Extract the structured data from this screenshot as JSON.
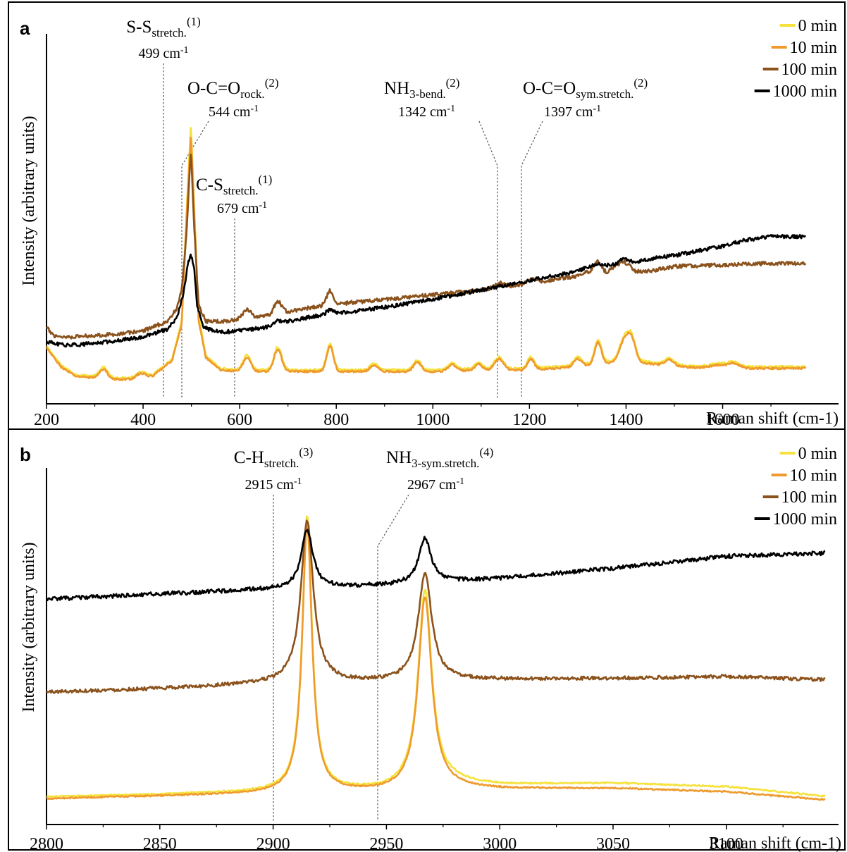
{
  "chart_data": [
    {
      "panel": "a",
      "type": "line",
      "xlabel": "Raman shift (cm-1)",
      "ylabel": "Intensity (arbitrary units)",
      "xlim": [
        200,
        1720
      ],
      "ylim": [
        0,
        1
      ],
      "xticks": [
        "200",
        "400",
        "600",
        "800",
        "1000",
        "1200",
        "1400",
        "1600"
      ],
      "legend_position": "top-right",
      "legend": [
        {
          "name": "0 min",
          "color": "#f5e23c"
        },
        {
          "name": "10 min",
          "color": "#ef9a2e"
        },
        {
          "name": "100 min",
          "color": "#8b521c"
        },
        {
          "name": "1000 min",
          "color": "#000000"
        }
      ],
      "annotations": [
        {
          "main": "S-S",
          "sub": "stretch.",
          "sup": "(1)",
          "wavenumber": "499 cm-1",
          "x": 499
        },
        {
          "main": "O-C=O",
          "sub": "rock.",
          "sup": "(2)",
          "wavenumber": "544 cm-1",
          "x": 544
        },
        {
          "main": "C-S",
          "sub": "stretch.",
          "sup": "(1)",
          "wavenumber": "679 cm-1",
          "x": 679
        },
        {
          "main": "NH",
          "sub": "3-bend.",
          "sup": "(2)",
          "wavenumber": "1342 cm-1",
          "x": 1342
        },
        {
          "main": "O-C=O",
          "sub": "sym.stretch.",
          "sup": "(2)",
          "wavenumber": "1397 cm-1",
          "x": 1397
        }
      ],
      "series": [
        {
          "name": "0 min",
          "color": "#f5e23c",
          "noise": 0.003,
          "peak_scale": 1.04,
          "x": [
            200,
            230,
            260,
            300,
            340,
            380,
            420,
            460,
            480,
            490,
            499,
            505,
            515,
            530,
            560,
            600,
            650,
            700,
            750,
            800,
            900,
            1000,
            1100,
            1200,
            1300,
            1400,
            1500,
            1600,
            1700,
            1720
          ],
          "y": [
            0.12,
            0.06,
            0.03,
            0.025,
            0.02,
            0.02,
            0.03,
            0.08,
            0.2,
            0.55,
            0.83,
            0.6,
            0.22,
            0.09,
            0.05,
            0.045,
            0.045,
            0.045,
            0.045,
            0.045,
            0.045,
            0.045,
            0.05,
            0.05,
            0.06,
            0.08,
            0.06,
            0.055,
            0.055,
            0.055
          ],
          "peaks": [
            [
              318,
              0.03,
              8
            ],
            [
              395,
              0.015,
              10
            ],
            [
              615,
              0.045,
              8
            ],
            [
              679,
              0.07,
              8
            ],
            [
              787,
              0.08,
              7
            ],
            [
              878,
              0.02,
              8
            ],
            [
              968,
              0.03,
              8
            ],
            [
              1040,
              0.02,
              8
            ],
            [
              1095,
              0.02,
              7
            ],
            [
              1137,
              0.035,
              9
            ],
            [
              1203,
              0.035,
              7
            ],
            [
              1300,
              0.025,
              8
            ],
            [
              1342,
              0.07,
              7
            ],
            [
              1397,
              0.065,
              10
            ],
            [
              1412,
              0.06,
              8
            ],
            [
              1490,
              0.02,
              10
            ],
            [
              1590,
              0.01,
              15
            ],
            [
              1622,
              0.015,
              12
            ]
          ]
        },
        {
          "name": "10 min",
          "color": "#ef9a2e",
          "noise": 0.003,
          "peak_scale": 1.0,
          "x": [
            200,
            230,
            260,
            300,
            340,
            380,
            420,
            460,
            480,
            490,
            499,
            505,
            515,
            530,
            560,
            600,
            650,
            700,
            750,
            800,
            900,
            1000,
            1100,
            1200,
            1300,
            1400,
            1500,
            1600,
            1700,
            1720
          ],
          "y": [
            0.115,
            0.055,
            0.025,
            0.02,
            0.015,
            0.015,
            0.025,
            0.075,
            0.19,
            0.53,
            0.8,
            0.58,
            0.2,
            0.085,
            0.045,
            0.04,
            0.04,
            0.04,
            0.04,
            0.04,
            0.04,
            0.04,
            0.045,
            0.045,
            0.055,
            0.075,
            0.055,
            0.05,
            0.05,
            0.05
          ],
          "peaks": [
            [
              318,
              0.03,
              8
            ],
            [
              395,
              0.015,
              10
            ],
            [
              615,
              0.045,
              8
            ],
            [
              679,
              0.07,
              8
            ],
            [
              787,
              0.08,
              7
            ],
            [
              878,
              0.02,
              8
            ],
            [
              968,
              0.03,
              8
            ],
            [
              1040,
              0.02,
              8
            ],
            [
              1095,
              0.02,
              7
            ],
            [
              1137,
              0.035,
              9
            ],
            [
              1203,
              0.035,
              7
            ],
            [
              1300,
              0.025,
              8
            ],
            [
              1342,
              0.07,
              7
            ],
            [
              1397,
              0.065,
              10
            ],
            [
              1412,
              0.06,
              8
            ],
            [
              1490,
              0.02,
              10
            ],
            [
              1590,
              0.01,
              15
            ],
            [
              1622,
              0.015,
              12
            ]
          ]
        },
        {
          "name": "100 min",
          "color": "#8b521c",
          "noise": 0.006,
          "peak_scale": 1.0,
          "x": [
            200,
            215,
            240,
            300,
            350,
            400,
            450,
            470,
            480,
            490,
            499,
            505,
            515,
            530,
            560,
            600,
            650,
            700,
            750,
            800,
            900,
            1000,
            1100,
            1200,
            1300,
            1342,
            1360,
            1380,
            1397,
            1420,
            1450,
            1500,
            1600,
            1700,
            1720
          ],
          "y": [
            0.18,
            0.155,
            0.15,
            0.155,
            0.16,
            0.17,
            0.2,
            0.24,
            0.3,
            0.48,
            0.75,
            0.52,
            0.25,
            0.2,
            0.2,
            0.205,
            0.215,
            0.23,
            0.245,
            0.255,
            0.27,
            0.285,
            0.3,
            0.32,
            0.345,
            0.37,
            0.355,
            0.38,
            0.39,
            0.36,
            0.36,
            0.375,
            0.38,
            0.385,
            0.385
          ],
          "peaks": [
            [
              615,
              0.03,
              9
            ],
            [
              679,
              0.04,
              8
            ],
            [
              787,
              0.045,
              7
            ],
            [
              1137,
              0.015,
              9
            ],
            [
              1203,
              0.015,
              8
            ],
            [
              1342,
              0.02,
              7
            ]
          ]
        },
        {
          "name": "1000 min",
          "color": "#000000",
          "noise": 0.006,
          "peak_scale": 1.0,
          "x": [
            200,
            230,
            260,
            300,
            350,
            400,
            450,
            470,
            485,
            493,
            499,
            505,
            512,
            525,
            560,
            600,
            650,
            700,
            750,
            800,
            850,
            900,
            1000,
            1100,
            1200,
            1300,
            1342,
            1360,
            1400,
            1450,
            1500,
            1550,
            1600,
            1650,
            1700,
            1720
          ],
          "y": [
            0.135,
            0.125,
            0.125,
            0.13,
            0.14,
            0.15,
            0.175,
            0.21,
            0.3,
            0.39,
            0.41,
            0.38,
            0.25,
            0.18,
            0.165,
            0.17,
            0.18,
            0.2,
            0.215,
            0.225,
            0.235,
            0.245,
            0.27,
            0.3,
            0.33,
            0.36,
            0.385,
            0.38,
            0.38,
            0.4,
            0.41,
            0.425,
            0.44,
            0.46,
            0.47,
            0.47
          ],
          "peaks": [
            [
              679,
              0.01,
              8
            ],
            [
              787,
              0.015,
              7
            ],
            [
              1397,
              0.02,
              10
            ]
          ]
        }
      ]
    },
    {
      "panel": "b",
      "type": "line",
      "xlabel": "Raman shift (cm-1)",
      "ylabel": "Intensity (arbitrary units)",
      "xlim": [
        2800,
        3150
      ],
      "ylim": [
        0,
        1
      ],
      "xticks": [
        "2800",
        "2850",
        "2900",
        "2950",
        "3000",
        "3050",
        "3100"
      ],
      "legend_position": "top-right",
      "legend": [
        {
          "name": "0 min",
          "color": "#f5e23c"
        },
        {
          "name": "10 min",
          "color": "#ef9a2e"
        },
        {
          "name": "100 min",
          "color": "#8b521c"
        },
        {
          "name": "1000 min",
          "color": "#000000"
        }
      ],
      "annotations": [
        {
          "main": "C-H",
          "sub": "stretch.",
          "sup": "(3)",
          "wavenumber": "2915 cm-1",
          "x": 2915
        },
        {
          "main": "NH",
          "sub": "3-sym.stretch.",
          "sup": "(4)",
          "wavenumber": "2967 cm-1",
          "x": 2967
        }
      ],
      "series": [
        {
          "name": "0 min",
          "color": "#f5e23c",
          "noise": 0.002,
          "base": [
            [
              2800,
              0.035
            ],
            [
              2900,
              0.05
            ],
            [
              2950,
              0.055
            ],
            [
              2980,
              0.075
            ],
            [
              3000,
              0.07
            ],
            [
              3050,
              0.075
            ],
            [
              3100,
              0.065
            ],
            [
              3147,
              0.035
            ]
          ],
          "lorentz": [
            [
              2915,
              0.8,
              2.6
            ],
            [
              2967,
              0.57,
              3.6
            ]
          ]
        },
        {
          "name": "10 min",
          "color": "#ef9a2e",
          "noise": 0.002,
          "base": [
            [
              2800,
              0.03
            ],
            [
              2900,
              0.045
            ],
            [
              2950,
              0.05
            ],
            [
              2980,
              0.06
            ],
            [
              3000,
              0.058
            ],
            [
              3050,
              0.06
            ],
            [
              3100,
              0.05
            ],
            [
              3147,
              0.025
            ]
          ],
          "lorentz": [
            [
              2915,
              0.78,
              2.6
            ],
            [
              2967,
              0.56,
              3.6
            ]
          ]
        },
        {
          "name": "100 min",
          "color": "#8b521c",
          "noise": 0.005,
          "base": [
            [
              2800,
              0.34
            ],
            [
              2850,
              0.35
            ],
            [
              2900,
              0.365
            ],
            [
              2950,
              0.37
            ],
            [
              2980,
              0.375
            ],
            [
              3050,
              0.38
            ],
            [
              3100,
              0.385
            ],
            [
              3147,
              0.375
            ]
          ],
          "lorentz": [
            [
              2915,
              0.47,
              3.3
            ],
            [
              2967,
              0.31,
              3.6
            ]
          ]
        },
        {
          "name": "1000 min",
          "color": "#000000",
          "noise": 0.006,
          "base": [
            [
              2800,
              0.61
            ],
            [
              2850,
              0.625
            ],
            [
              2900,
              0.64
            ],
            [
              2950,
              0.65
            ],
            [
              3000,
              0.67
            ],
            [
              3050,
              0.7
            ],
            [
              3100,
              0.735
            ],
            [
              3147,
              0.745
            ]
          ],
          "lorentz": [
            [
              2915,
              0.17,
              3.0
            ],
            [
              2967,
              0.13,
              3.3
            ]
          ]
        }
      ]
    }
  ]
}
